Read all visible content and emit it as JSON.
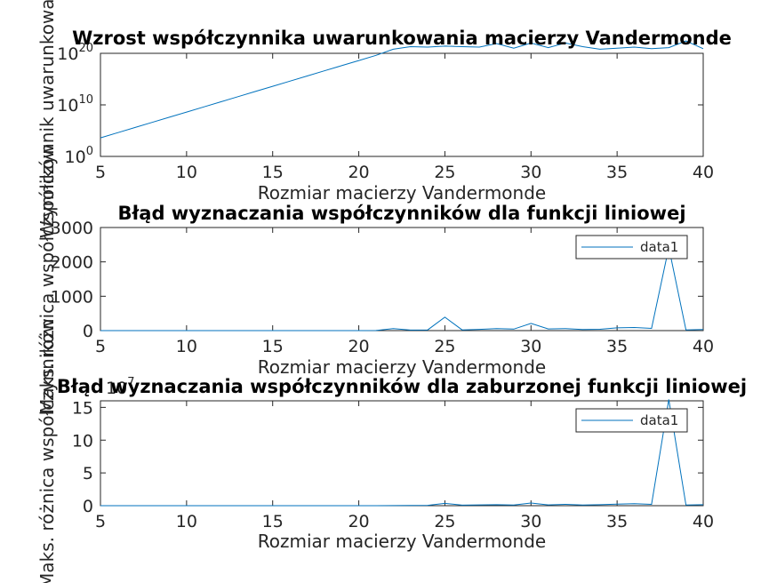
{
  "chart_data": [
    {
      "type": "line",
      "title": "Wzrost współczynnika uwarunkowania macierzy Vandermonde",
      "xlabel": "Rozmiar macierzy Vandermonde",
      "ylabel": "Współczynnik uwarunkowania",
      "scale_y": "log",
      "xlim": [
        5,
        40
      ],
      "ylim_exp": [
        0,
        20
      ],
      "xticks": [
        5,
        10,
        15,
        20,
        25,
        30,
        35,
        40
      ],
      "yticks": [
        {
          "base": "10",
          "exp": "0",
          "value": 0
        },
        {
          "base": "10",
          "exp": "10",
          "value": 10
        },
        {
          "base": "10",
          "exp": "20",
          "value": 20
        }
      ],
      "line_color": "#0072BD",
      "legend": null,
      "series": [
        {
          "x": [
            5,
            6,
            7,
            8,
            9,
            10,
            11,
            12,
            13,
            14,
            15,
            16,
            17,
            18,
            19,
            20,
            21,
            22,
            23,
            24,
            25,
            26,
            27,
            28,
            29,
            30,
            31,
            32,
            33,
            34,
            35,
            36,
            37,
            38,
            39,
            40
          ],
          "y_log10": [
            3.6,
            4.6,
            5.6,
            6.6,
            7.6,
            8.6,
            9.6,
            10.6,
            11.6,
            12.6,
            13.6,
            14.6,
            15.6,
            16.6,
            17.6,
            18.6,
            19.6,
            20.8,
            21.3,
            21.2,
            21.4,
            21.3,
            21.2,
            21.9,
            21.0,
            22.0,
            21.1,
            22.0,
            21.3,
            20.8,
            21.0,
            21.2,
            20.9,
            21.1,
            22.4,
            20.9
          ]
        }
      ]
    },
    {
      "type": "line",
      "title": "Błąd wyznaczania współczynników dla funkcji liniowej",
      "xlabel": "Rozmiar macierzy Vandermonde",
      "ylabel": "Maks. różnica współczynników",
      "xlim": [
        5,
        40
      ],
      "ylim": [
        0,
        3000
      ],
      "xticks": [
        5,
        10,
        15,
        20,
        25,
        30,
        35,
        40
      ],
      "yticks": [
        0,
        1000,
        2000,
        3000
      ],
      "line_color": "#0072BD",
      "legend": {
        "entries": [
          "data1"
        ],
        "location": "top-right"
      },
      "series": [
        {
          "name": "data1",
          "x": [
            5,
            6,
            7,
            8,
            9,
            10,
            11,
            12,
            13,
            14,
            15,
            16,
            17,
            18,
            19,
            20,
            21,
            22,
            23,
            24,
            25,
            26,
            27,
            28,
            29,
            30,
            31,
            32,
            33,
            34,
            35,
            36,
            37,
            38,
            39,
            40
          ],
          "y": [
            0,
            0,
            0,
            0,
            0,
            0,
            0,
            0,
            0,
            0,
            0,
            0,
            0,
            0,
            0,
            0,
            2,
            60,
            15,
            20,
            390,
            20,
            35,
            60,
            45,
            210,
            50,
            60,
            30,
            40,
            80,
            90,
            65,
            2420,
            20,
            30
          ]
        }
      ]
    },
    {
      "type": "line",
      "title": "Błąd wyznaczania współczynników dla zaburzonej funkcji liniowej",
      "xlabel": "Rozmiar macierzy Vandermonde",
      "ylabel": "Maks. różnica współczynników",
      "xlim": [
        5,
        40
      ],
      "ylim": [
        0,
        16
      ],
      "multiplier": {
        "base": "10",
        "exp": "7"
      },
      "xticks": [
        5,
        10,
        15,
        20,
        25,
        30,
        35,
        40
      ],
      "yticks": [
        0,
        5,
        10,
        15
      ],
      "line_color": "#0072BD",
      "legend": {
        "entries": [
          "data1"
        ],
        "location": "top-right"
      },
      "series": [
        {
          "name": "data1",
          "x": [
            5,
            6,
            7,
            8,
            9,
            10,
            11,
            12,
            13,
            14,
            15,
            16,
            17,
            18,
            19,
            20,
            21,
            22,
            23,
            24,
            25,
            26,
            27,
            28,
            29,
            30,
            31,
            32,
            33,
            34,
            35,
            36,
            37,
            38,
            39,
            40
          ],
          "y": [
            0,
            0,
            0,
            0,
            0,
            0,
            0,
            0,
            0,
            0,
            0,
            0,
            0,
            0,
            0,
            0,
            0,
            0.02,
            0.03,
            0.05,
            0.35,
            0.08,
            0.12,
            0.15,
            0.1,
            0.4,
            0.12,
            0.2,
            0.1,
            0.15,
            0.25,
            0.3,
            0.2,
            16.2,
            0.1,
            0.15
          ]
        }
      ]
    }
  ]
}
